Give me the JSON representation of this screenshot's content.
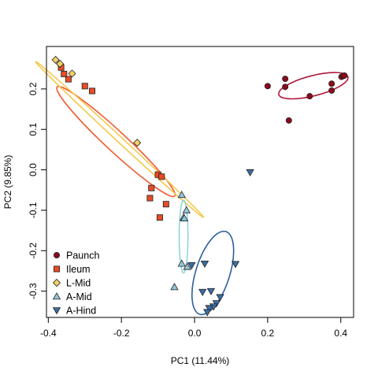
{
  "chart_data": {
    "type": "scatter",
    "title": "",
    "xlabel": "PC1 (11.44%)",
    "ylabel": "PC2 (9.85%)",
    "xlim": [
      -0.405,
      0.435
    ],
    "ylim": [
      -0.365,
      0.305
    ],
    "xticks": [
      -0.4,
      -0.2,
      0.0,
      0.2,
      0.4
    ],
    "xtick_labels": [
      "-0.4",
      "-0.2",
      "0.0",
      "0.2",
      "0.4"
    ],
    "yticks": [
      -0.3,
      -0.2,
      -0.1,
      0.0,
      0.1,
      0.2
    ],
    "ytick_labels": [
      "-0.3",
      "-0.2",
      "-0.1",
      "0.0",
      "0.1",
      "0.2"
    ],
    "grid": false,
    "legend_position": "bottom-left",
    "series": [
      {
        "name": "Paunch",
        "marker": "circle",
        "color": "#8b0a1c",
        "x": [
          0.2,
          0.248,
          0.248,
          0.258,
          0.315,
          0.375,
          0.375,
          0.402,
          0.407,
          0.41
        ],
        "y": [
          0.207,
          0.225,
          0.205,
          0.122,
          0.182,
          0.213,
          0.196,
          0.23,
          0.232,
          0.233
        ],
        "ellipse": {
          "cx": 0.325,
          "cy": 0.208,
          "rx": 0.097,
          "ry": 0.025,
          "angle_deg": 13,
          "color": "#b0173a"
        }
      },
      {
        "name": "Ileum",
        "marker": "square",
        "color": "#e84b27",
        "x": [
          -0.365,
          -0.357,
          -0.345,
          -0.3,
          -0.28,
          -0.1,
          -0.118,
          -0.09,
          -0.122,
          -0.078,
          -0.095
        ],
        "y": [
          0.253,
          0.237,
          0.224,
          0.207,
          0.195,
          -0.012,
          -0.045,
          -0.017,
          -0.07,
          -0.085,
          -0.118
        ],
        "ellipse": {
          "cx": -0.215,
          "cy": 0.07,
          "rx": 0.21,
          "ry": 0.026,
          "angle_deg": -40,
          "color": "#ee5a30"
        }
      },
      {
        "name": "L-Mid",
        "marker": "diamond",
        "color": "#f4d266",
        "x": [
          -0.38,
          -0.368,
          -0.335,
          -0.157
        ],
        "y": [
          0.272,
          0.262,
          0.238,
          0.067
        ],
        "ellipse": {
          "cx": -0.205,
          "cy": 0.075,
          "rx": 0.3,
          "ry": 0.007,
          "angle_deg": -40,
          "color": "#f4c84f"
        }
      },
      {
        "name": "A-Mid",
        "marker": "triangle-up",
        "color": "#93c8d8",
        "x": [
          -0.035,
          -0.022,
          -0.03,
          -0.028,
          -0.035,
          -0.055,
          -0.02
        ],
        "y": [
          -0.062,
          -0.1,
          -0.118,
          -0.12,
          -0.232,
          -0.29,
          -0.24
        ],
        "ellipse": {
          "cx": -0.03,
          "cy": -0.165,
          "rx": 0.012,
          "ry": 0.09,
          "angle_deg": 0,
          "color": "#8fd4dc"
        }
      },
      {
        "name": "A-Hind",
        "marker": "triangle-down",
        "color": "#3a6ea5",
        "x": [
          0.152,
          0.112,
          0.028,
          -0.008,
          0.022,
          0.045,
          0.07,
          0.06,
          0.052,
          0.04,
          0.035
        ],
        "y": [
          -0.006,
          -0.233,
          -0.232,
          -0.236,
          -0.302,
          -0.3,
          -0.315,
          -0.33,
          -0.338,
          -0.342,
          -0.352
        ],
        "ellipse": {
          "cx": 0.05,
          "cy": -0.255,
          "rx": 0.046,
          "ry": 0.108,
          "angle_deg": -16,
          "color": "#2c5f9e"
        }
      }
    ]
  }
}
